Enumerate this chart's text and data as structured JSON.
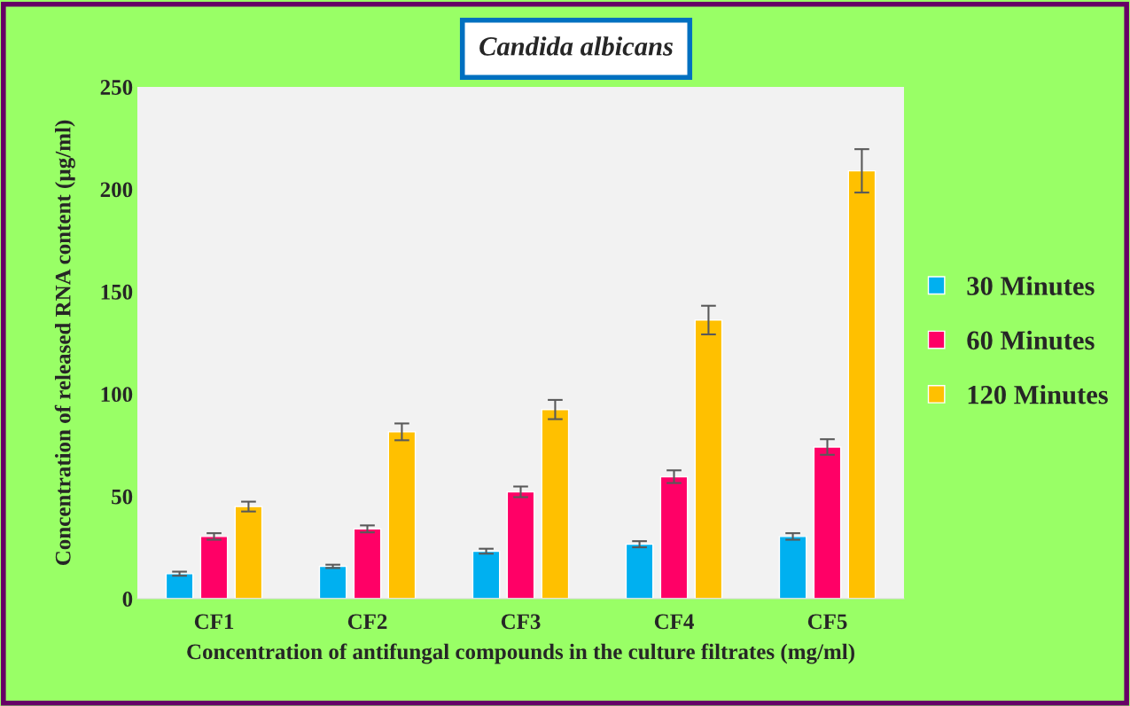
{
  "chart_data": {
    "type": "bar",
    "title": "Candida albicans",
    "xlabel": "Concentration of antifungal compounds in the culture filtrates (mg/ml)",
    "ylabel": "Concentration of released RNA content (µg/ml)",
    "categories": [
      "CF1",
      "CF2",
      "CF3",
      "CF4",
      "CF5"
    ],
    "series": [
      {
        "name": "30 Minutes",
        "color": "#00b0f0",
        "values": [
          12.2,
          15.8,
          23.2,
          26.6,
          30.4
        ],
        "errors": [
          1.0,
          0.8,
          1.2,
          1.5,
          1.6
        ]
      },
      {
        "name": "60 Minutes",
        "color": "#ff0066",
        "values": [
          30.4,
          34.1,
          52.2,
          59.6,
          74.1
        ],
        "errors": [
          1.6,
          1.7,
          2.6,
          3.1,
          3.8
        ]
      },
      {
        "name": "120 Minutes",
        "color": "#ffc000",
        "values": [
          45.0,
          81.5,
          92.4,
          136.1,
          209.0
        ],
        "errors": [
          2.4,
          4.1,
          4.7,
          7.0,
          10.6
        ]
      }
    ],
    "ylim": [
      0,
      250
    ],
    "yticks": [
      0,
      50,
      100,
      150,
      200,
      250
    ],
    "grid": false,
    "legend": "right"
  }
}
